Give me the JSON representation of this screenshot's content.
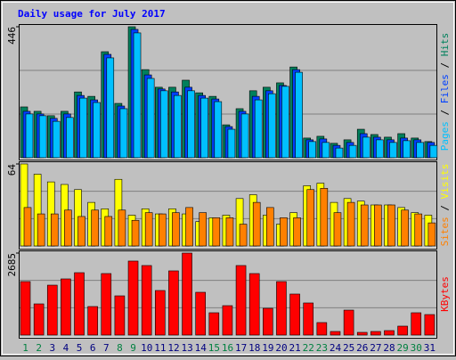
{
  "title": "Daily usage for July 2017",
  "chart_data": [
    {
      "type": "bar",
      "series": [
        {
          "name": "Hits",
          "color": "#00805c",
          "values": [
            173,
            158,
            143,
            158,
            224,
            209,
            361,
            185,
            446,
            300,
            240,
            240,
            264,
            221,
            209,
            112,
            167,
            228,
            240,
            255,
            309,
            67,
            73,
            49,
            61,
            97,
            79,
            70,
            82,
            67,
            55
          ]
        },
        {
          "name": "Files",
          "color": "#0040ff",
          "values": [
            158,
            149,
            134,
            149,
            212,
            197,
            352,
            176,
            437,
            282,
            234,
            224,
            240,
            212,
            200,
            106,
            158,
            209,
            228,
            246,
            300,
            61,
            64,
            42,
            52,
            82,
            70,
            61,
            67,
            61,
            52
          ]
        },
        {
          "name": "Pages",
          "color": "#00c0ff",
          "values": [
            149,
            143,
            124,
            137,
            203,
            188,
            340,
            167,
            425,
            270,
            228,
            212,
            228,
            203,
            191,
            97,
            149,
            197,
            218,
            243,
            291,
            55,
            52,
            33,
            42,
            70,
            61,
            52,
            58,
            52,
            42
          ]
        }
      ],
      "ylim": [
        0,
        446
      ],
      "yticks": [
        446
      ],
      "grid": true
    },
    {
      "type": "bar",
      "series": [
        {
          "name": "Visits",
          "color": "#ffff00",
          "values": [
            64,
            56,
            50,
            48,
            44,
            34,
            29,
            52,
            24,
            29,
            25,
            29,
            25,
            19,
            22,
            24,
            37,
            40,
            24,
            17,
            26,
            47,
            49,
            34,
            37,
            35,
            32,
            32,
            30,
            26,
            24
          ]
        },
        {
          "name": "Sites",
          "color": "#ff8000",
          "values": [
            30,
            25,
            25,
            28,
            23,
            28,
            23,
            28,
            20,
            26,
            25,
            26,
            30,
            26,
            22,
            22,
            17,
            34,
            30,
            22,
            22,
            44,
            45,
            26,
            34,
            32,
            32,
            32,
            28,
            25,
            18
          ]
        }
      ],
      "ylim": [
        0,
        64
      ],
      "yticks": [
        64
      ],
      "grid": true
    },
    {
      "type": "bar",
      "categories": [
        "1",
        "2",
        "3",
        "4",
        "5",
        "6",
        "7",
        "8",
        "9",
        "10",
        "11",
        "12",
        "13",
        "14",
        "15",
        "16",
        "17",
        "18",
        "19",
        "20",
        "21",
        "22",
        "23",
        "24",
        "25",
        "26",
        "27",
        "28",
        "29",
        "30",
        "31"
      ],
      "label_colors": [
        "#008040",
        "#008040",
        "#000080",
        "#000080",
        "#000080",
        "#000080",
        "#000080",
        "#008040",
        "#008040",
        "#000080",
        "#000080",
        "#000080",
        "#000080",
        "#000080",
        "#008040",
        "#008040",
        "#000080",
        "#000080",
        "#000080",
        "#000080",
        "#000080",
        "#008040",
        "#008040",
        "#000080",
        "#000080",
        "#000080",
        "#000080",
        "#000080",
        "#008040",
        "#008040",
        "#000080"
      ],
      "series": [
        {
          "name": "KBytes",
          "color": "#ff0000",
          "values": [
            1751,
            1021,
            1634,
            1839,
            2043,
            934,
            2014,
            1284,
            2423,
            2277,
            1459,
            2102,
            2685,
            1401,
            730,
            963,
            2277,
            2014,
            876,
            1751,
            1343,
            1051,
            409,
            117,
            817,
            88,
            117,
            146,
            292,
            730,
            671
          ]
        }
      ],
      "ylim": [
        0,
        2685
      ],
      "yticks": [
        2685
      ],
      "grid": true
    }
  ]
}
